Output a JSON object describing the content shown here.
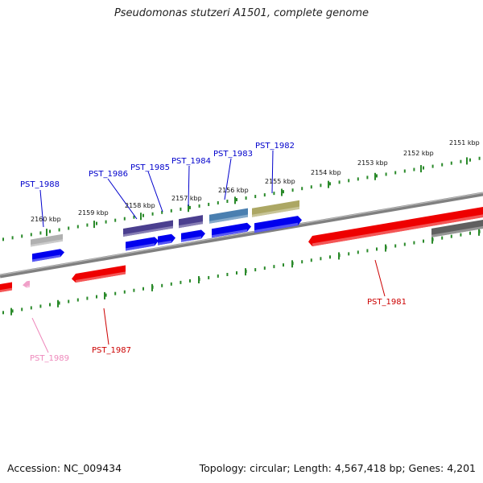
{
  "title": "Pseudomonas stutzeri A1501, complete genome",
  "accession": "Accession: NC_009434",
  "topology": "Topology: circular; Length: 4,567,418 bp; Genes: 4,201",
  "colors": {
    "backbone": "#808080",
    "tick": "#2a8a2a",
    "forward_cds": "#0000ee",
    "reverse_cds": "#ee0000",
    "label_forward": "#0000cc",
    "label_reverse": "#cc0000",
    "label_other": "#ee88bb",
    "feature_purple": "#4b3f8f",
    "feature_steelblue": "#4a7fb0",
    "feature_olive": "#aca764",
    "feature_gray": "#b0b0b0",
    "feature_darkgray": "#606060",
    "feature_pink": "#f0a0c8"
  },
  "scale_labels": [
    {
      "text": "2160 kbp"
    },
    {
      "text": "2159 kbp"
    },
    {
      "text": "2158 kbp"
    },
    {
      "text": "2157 kbp"
    },
    {
      "text": "2156 kbp"
    },
    {
      "text": "2155 kbp"
    },
    {
      "text": "2154 kbp"
    },
    {
      "text": "2153 kbp"
    },
    {
      "text": "2152 kbp"
    },
    {
      "text": "2151 kbp"
    }
  ],
  "genes": [
    {
      "name": "PST_1988",
      "strand": "forward"
    },
    {
      "name": "PST_1986",
      "strand": "forward"
    },
    {
      "name": "PST_1985",
      "strand": "forward"
    },
    {
      "name": "PST_1984",
      "strand": "forward"
    },
    {
      "name": "PST_1983",
      "strand": "forward"
    },
    {
      "name": "PST_1982",
      "strand": "forward"
    },
    {
      "name": "PST_1981",
      "strand": "reverse"
    },
    {
      "name": "PST_1987",
      "strand": "reverse"
    },
    {
      "name": "PST_1989",
      "strand": "reverse"
    }
  ]
}
